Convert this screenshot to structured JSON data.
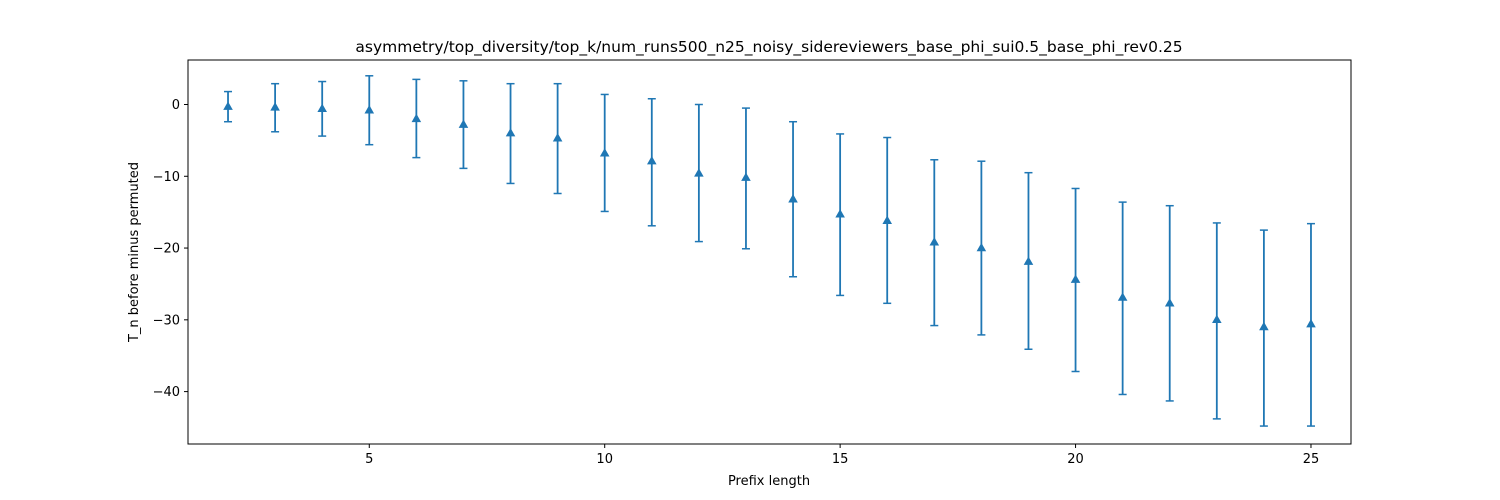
{
  "chart_data": {
    "type": "scatter",
    "title": "asymmetry/top_diversity/top_k/num_runs500_n25_noisy_sidereviewers_base_phi_sui0.5_base_phi_rev0.25",
    "xlabel": "Prefix length",
    "ylabel": "T_n before minus permuted",
    "xlim": [
      1.15,
      25.85
    ],
    "ylim": [
      -47.3,
      6.2
    ],
    "x_ticks": [
      5,
      10,
      15,
      20,
      25
    ],
    "x_tick_labels": [
      "5",
      "10",
      "15",
      "20",
      "25"
    ],
    "y_ticks": [
      0,
      -10,
      -20,
      -30,
      -40
    ],
    "y_tick_labels": [
      "0",
      "−10",
      "−20",
      "−30",
      "−40"
    ],
    "grid": false,
    "marker": "triangle-up",
    "color": "#1f77b4",
    "series": [
      {
        "x": [
          2,
          3,
          4,
          5,
          6,
          7,
          8,
          9,
          10,
          11,
          12,
          13,
          14,
          15,
          16,
          17,
          18,
          19,
          20,
          21,
          22,
          23,
          24,
          25
        ],
        "y": [
          -0.3,
          -0.4,
          -0.6,
          -0.8,
          -2.0,
          -2.8,
          -4.0,
          -4.7,
          -6.8,
          -7.9,
          -9.6,
          -10.2,
          -13.2,
          -15.3,
          -16.2,
          -19.2,
          -20.0,
          -21.9,
          -24.4,
          -26.9,
          -27.7,
          -30.0,
          -31.0,
          -30.6
        ],
        "yerr_low": [
          -2.4,
          -3.8,
          -4.4,
          -5.6,
          -7.4,
          -8.9,
          -11.0,
          -12.4,
          -14.9,
          -16.9,
          -19.1,
          -20.1,
          -24.0,
          -26.6,
          -27.7,
          -30.8,
          -32.1,
          -34.1,
          -37.2,
          -40.4,
          -41.3,
          -43.8,
          -44.8,
          -44.8
        ],
        "yerr_high": [
          1.8,
          2.9,
          3.2,
          4.0,
          3.5,
          3.3,
          2.9,
          2.9,
          1.4,
          0.8,
          0.0,
          -0.5,
          -2.4,
          -4.1,
          -4.6,
          -7.7,
          -7.9,
          -9.5,
          -11.7,
          -13.6,
          -14.1,
          -16.5,
          -17.5,
          -16.6
        ]
      }
    ]
  }
}
